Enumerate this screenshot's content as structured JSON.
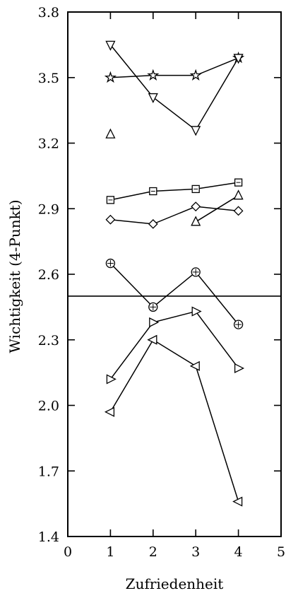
{
  "chart_data": {
    "type": "line",
    "xlabel": "Zufriedenheit",
    "ylabel": "Wichtigkeit (4-Punkt)",
    "xlim": [
      0,
      5
    ],
    "ylim": [
      1.4,
      3.8
    ],
    "xticks": [
      0,
      1,
      2,
      3,
      4,
      5
    ],
    "yticks": [
      "1.4",
      "1.7",
      "2.0",
      "2.3",
      "2.6",
      "2.9",
      "3.2",
      "3.5",
      "3.8"
    ],
    "grid": false,
    "reference_line": {
      "y": 2.5
    },
    "x": [
      1,
      2,
      3,
      4
    ],
    "series": [
      {
        "marker": "star",
        "values": [
          3.5,
          3.51,
          3.51,
          3.59
        ]
      },
      {
        "marker": "triangle-down",
        "values": [
          3.65,
          3.41,
          3.26,
          3.59
        ]
      },
      {
        "marker": "triangle-up",
        "values": [
          3.24,
          null,
          2.84,
          2.96
        ]
      },
      {
        "marker": "square",
        "values": [
          2.94,
          2.98,
          2.99,
          3.02
        ]
      },
      {
        "marker": "diamond",
        "values": [
          2.85,
          2.83,
          2.91,
          2.89
        ]
      },
      {
        "marker": "circle",
        "values": [
          2.65,
          2.45,
          2.61,
          2.37
        ]
      },
      {
        "marker": "triangle-right",
        "values": [
          2.12,
          2.38,
          2.43,
          2.17
        ]
      },
      {
        "marker": "triangle-left",
        "values": [
          1.97,
          2.3,
          2.18,
          1.56
        ]
      }
    ]
  }
}
